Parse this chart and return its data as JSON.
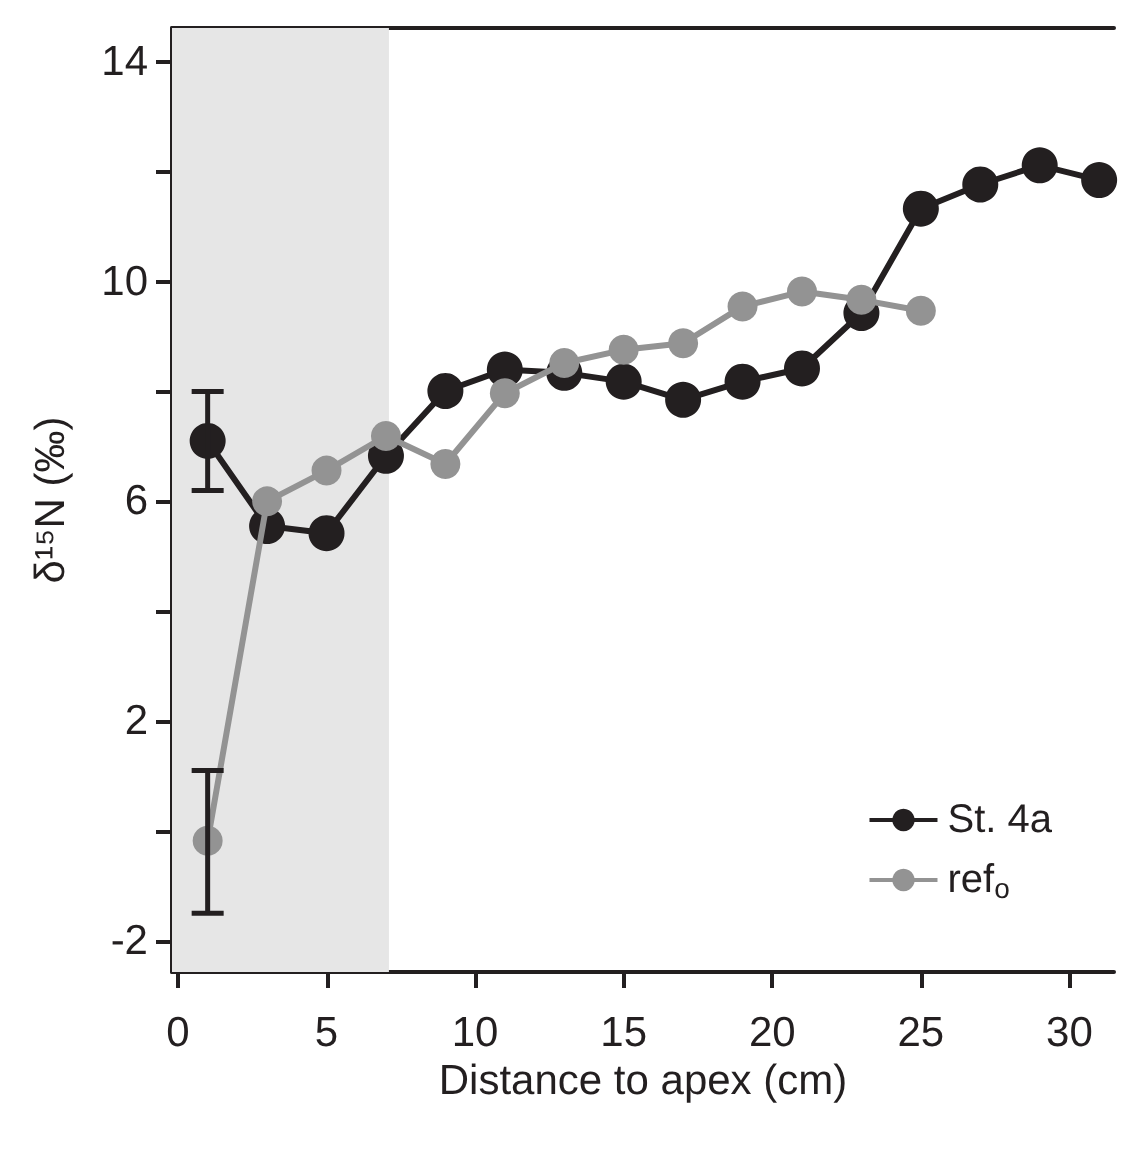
{
  "chart_data": {
    "type": "line",
    "xlabel": "Distance to apex (cm)",
    "ylabel": "δ¹⁵N (‰)",
    "xlim": [
      -0.2,
      31.5
    ],
    "xticks": [
      0,
      5,
      10,
      15,
      20,
      25,
      30
    ],
    "ylim": [
      -2.57,
      14.62
    ],
    "yticks": [
      -2,
      {
        "value": 0,
        "label": null
      },
      2,
      {
        "value": 4,
        "label": null
      },
      6,
      {
        "value": 8,
        "label": null
      },
      10,
      {
        "value": 12,
        "label": null
      },
      14
    ],
    "grid": false,
    "legend": "bottom right",
    "marker": "circle",
    "line_style": "solid",
    "bands": [
      {
        "axis": "x",
        "from": -0.2,
        "to": 7.1,
        "color": "#e6e6e6"
      }
    ],
    "series": [
      {
        "name": "St. 4a",
        "color": "#231f20",
        "x": [
          1,
          3,
          5,
          7,
          9,
          11,
          13,
          15,
          17,
          19,
          21,
          23,
          25,
          27,
          29,
          31
        ],
        "values": [
          7.1,
          5.55,
          5.42,
          6.83,
          8.01,
          8.4,
          8.34,
          8.18,
          7.85,
          8.18,
          8.42,
          9.43,
          11.33,
          11.77,
          12.12,
          11.85
        ],
        "errors": [
          [
            6.2,
            8.0
          ],
          null,
          null,
          null,
          null,
          null,
          null,
          null,
          null,
          null,
          null,
          null,
          null,
          null,
          null,
          null
        ]
      },
      {
        "name": "ref$_{o}$",
        "color": "#939393",
        "x": [
          1,
          3,
          5,
          7,
          9,
          11,
          13,
          15,
          17,
          19,
          21,
          23,
          25
        ],
        "values": [
          -0.18,
          6.0,
          6.56,
          7.19,
          6.68,
          7.97,
          8.52,
          8.76,
          8.88,
          9.55,
          9.82,
          9.67,
          9.47
        ],
        "errors": [
          [
            -1.5,
            1.1
          ],
          null,
          null,
          null,
          null,
          null,
          null,
          null,
          null,
          null,
          null,
          null,
          null
        ]
      }
    ]
  }
}
